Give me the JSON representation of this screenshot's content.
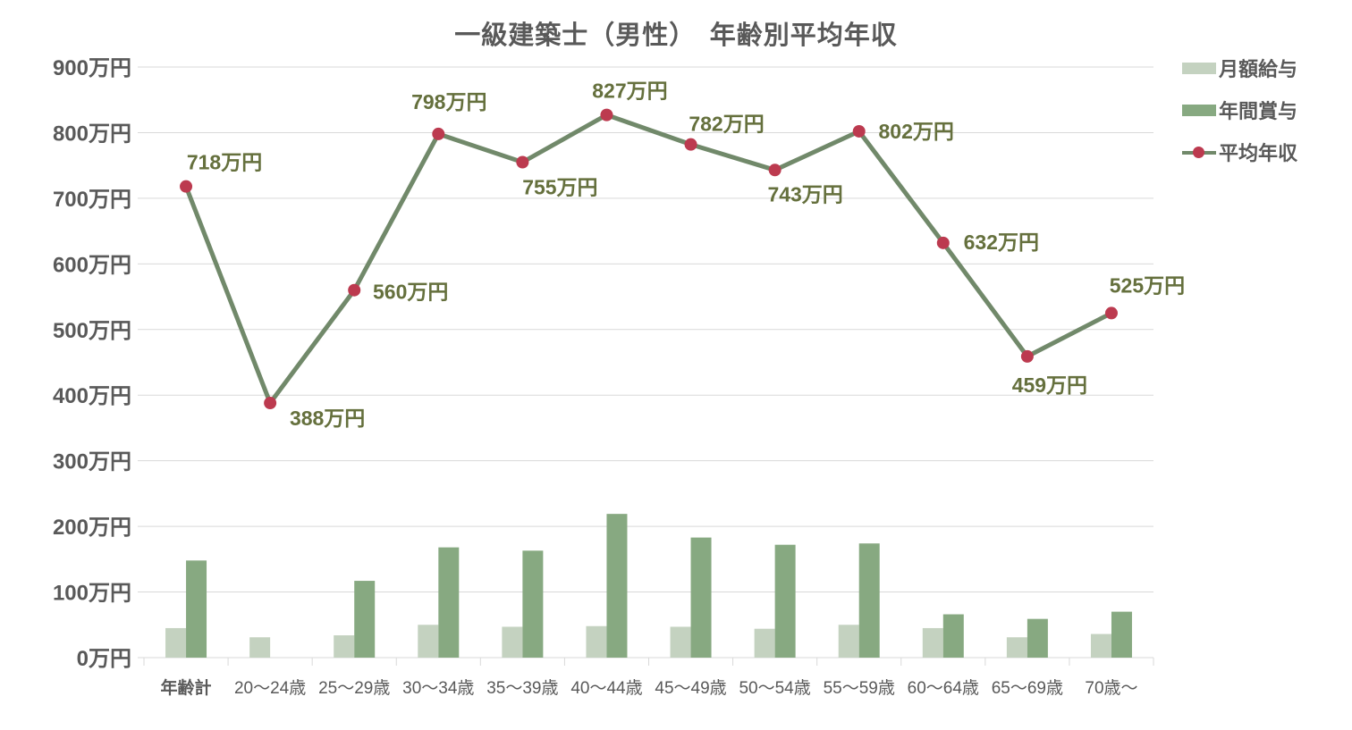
{
  "title": "一級建築士（男性）　年齢別平均年収",
  "legend": {
    "items": [
      {
        "label": "月額給与",
        "swatch": "bar-light"
      },
      {
        "label": "年間賞与",
        "swatch": "bar-dark"
      },
      {
        "label": "平均年収",
        "swatch": "line-marker"
      }
    ]
  },
  "colors": {
    "monthly_salary_bar": "#c4d2c0",
    "annual_bonus_bar": "#87a981",
    "average_income_line": "#71896a",
    "average_income_marker": "#bc3a4f",
    "data_label_text": "#65703d",
    "axis_text": "#595959",
    "title_text": "#595959",
    "gridline": "#d9d9d9",
    "background": "#ffffff"
  },
  "chart_data": {
    "type": "bar",
    "subtype": "combo-bar-line",
    "title": "一級建築士（男性）　年齢別平均年収",
    "unit": "万円",
    "categories": [
      "年齢計",
      "20〜24歳",
      "25〜29歳",
      "30〜34歳",
      "35〜39歳",
      "40〜44歳",
      "45〜49歳",
      "50〜54歳",
      "55〜59歳",
      "60〜64歳",
      "65〜69歳",
      "70歳〜"
    ],
    "series": [
      {
        "name": "月額給与",
        "type": "bar",
        "values": [
          45,
          31,
          34,
          50,
          47,
          48,
          47,
          44,
          50,
          45,
          31,
          36
        ]
      },
      {
        "name": "年間賞与",
        "type": "bar",
        "values": [
          148,
          0,
          117,
          168,
          163,
          219,
          183,
          172,
          174,
          66,
          59,
          70
        ]
      },
      {
        "name": "平均年収",
        "type": "line",
        "values": [
          718,
          388,
          560,
          798,
          755,
          827,
          782,
          743,
          802,
          632,
          459,
          525
        ],
        "data_labels": [
          "718万円",
          "388万円",
          "560万円",
          "798万円",
          "755万円",
          "827万円",
          "782万円",
          "743万円",
          "802万円",
          "632万円",
          "459万円",
          "525万円"
        ],
        "label_offsets": [
          {
            "dx": 43,
            "dy": -27
          },
          {
            "dx": 64,
            "dy": 17
          },
          {
            "dx": 63,
            "dy": 2
          },
          {
            "dx": 12,
            "dy": -36
          },
          {
            "dx": 42,
            "dy": 28
          },
          {
            "dx": 26,
            "dy": -27
          },
          {
            "dx": 40,
            "dy": -23
          },
          {
            "dx": 34,
            "dy": 27
          },
          {
            "dx": 64,
            "dy": 0
          },
          {
            "dx": 65,
            "dy": -1
          },
          {
            "dx": 25,
            "dy": 32
          },
          {
            "dx": 40,
            "dy": -31
          }
        ]
      }
    ],
    "xlabel": "",
    "ylabel": "",
    "y_axis": {
      "ticks": [
        "0万円",
        "100万円",
        "200万円",
        "300万円",
        "400万円",
        "500万円",
        "600万円",
        "700万円",
        "800万円",
        "900万円"
      ],
      "min": 0,
      "max": 900,
      "step": 100
    },
    "grid": true,
    "legend_position": "top-right"
  }
}
